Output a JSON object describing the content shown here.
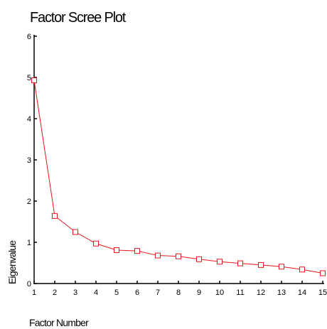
{
  "chart_data": {
    "type": "line",
    "title": "Factor Scree Plot",
    "xlabel": "Factor Number",
    "ylabel": "Eigenvalue",
    "x": [
      1,
      2,
      3,
      4,
      5,
      6,
      7,
      8,
      9,
      10,
      11,
      12,
      13,
      14,
      15
    ],
    "series": [
      {
        "values": [
          4.93,
          1.64,
          1.25,
          0.97,
          0.81,
          0.79,
          0.68,
          0.66,
          0.59,
          0.53,
          0.49,
          0.45,
          0.41,
          0.34,
          0.25
        ]
      }
    ],
    "xlim": [
      1,
      15
    ],
    "ylim": [
      0,
      6
    ],
    "yticks": [
      0,
      1,
      2,
      3,
      4,
      5,
      6
    ],
    "xticks": [
      1,
      2,
      3,
      4,
      5,
      6,
      7,
      8,
      9,
      10,
      11,
      12,
      13,
      14,
      15
    ],
    "grid": false,
    "marker": "square",
    "line_color": "#e8141c",
    "axis_color": "#000000"
  }
}
